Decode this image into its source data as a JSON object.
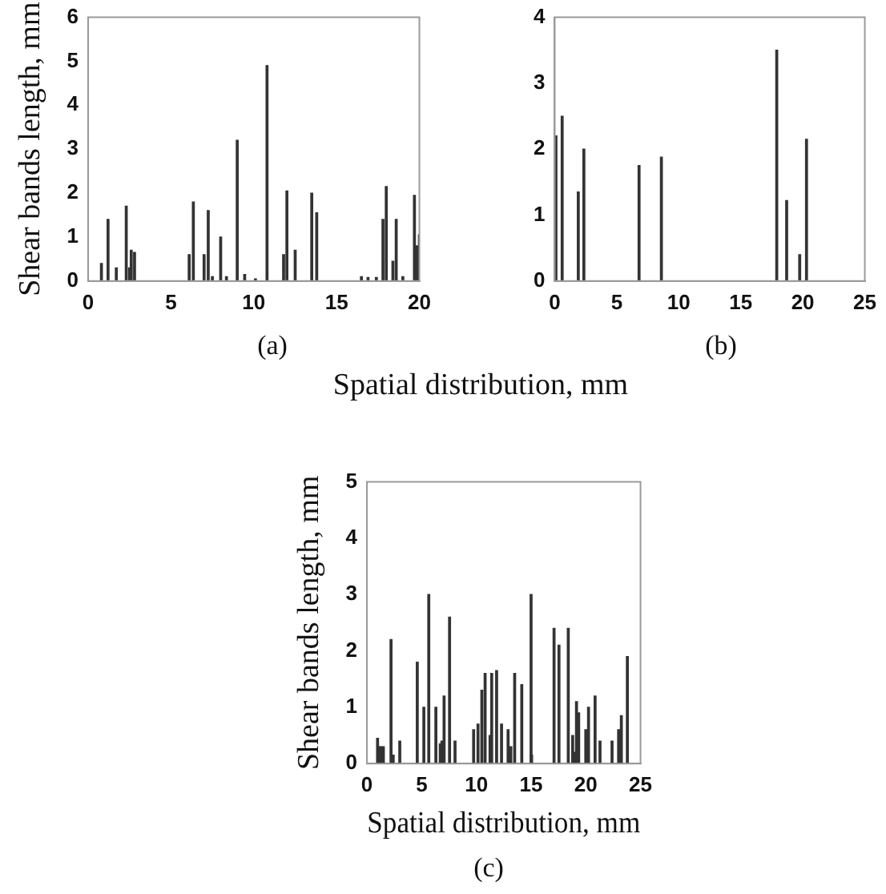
{
  "chart_data": [
    {
      "type": "bar",
      "title": "(a)",
      "xlabel": "Spatial distribution, mm",
      "ylabel": "Shear bands length, mm",
      "color": "#333333",
      "grid": false,
      "xlim": [
        0,
        20
      ],
      "xticks": [
        0,
        5,
        10,
        15,
        20
      ],
      "ylim": [
        0,
        6
      ],
      "yticks": [
        0,
        1,
        2,
        3,
        4,
        5,
        6
      ],
      "x": [
        0.8,
        1.2,
        1.7,
        2.3,
        2.5,
        2.6,
        2.8,
        6.1,
        6.35,
        7.0,
        7.25,
        7.5,
        8.0,
        8.35,
        9.0,
        9.45,
        10.1,
        10.8,
        11.8,
        12.0,
        12.5,
        13.5,
        13.8,
        16.5,
        16.9,
        17.4,
        17.8,
        18.0,
        18.4,
        18.6,
        19.0,
        19.7,
        19.85,
        20.0
      ],
      "values": [
        0.4,
        1.4,
        0.3,
        1.7,
        0.3,
        0.7,
        0.65,
        0.6,
        1.8,
        0.6,
        1.6,
        0.1,
        1.0,
        0.1,
        3.2,
        0.15,
        0.05,
        4.9,
        0.6,
        2.05,
        0.7,
        2.0,
        1.55,
        0.1,
        0.08,
        0.08,
        1.4,
        2.15,
        0.45,
        1.4,
        0.1,
        1.95,
        0.8,
        1.05
      ]
    },
    {
      "type": "bar",
      "title": "(b)",
      "color": "#333333",
      "grid": false,
      "xlim": [
        0,
        25
      ],
      "xticks": [
        0,
        5,
        10,
        15,
        20,
        25
      ],
      "ylim": [
        0,
        4
      ],
      "yticks": [
        0,
        1,
        2,
        3,
        4
      ],
      "x": [
        0.1,
        0.6,
        1.9,
        2.35,
        6.8,
        8.6,
        17.9,
        18.7,
        19.75,
        20.3
      ],
      "values": [
        2.2,
        2.5,
        1.35,
        2.0,
        1.75,
        1.88,
        3.5,
        1.22,
        0.4,
        2.15
      ]
    },
    {
      "type": "bar",
      "title": "(c)",
      "xlabel": "Spatial distribution, mm",
      "ylabel": "Shear bands length, mm",
      "color": "#333333",
      "grid": false,
      "xlim": [
        0,
        25
      ],
      "xticks": [
        0,
        5,
        10,
        15,
        20,
        25
      ],
      "ylim": [
        0,
        5
      ],
      "yticks": [
        0,
        1,
        2,
        3,
        4,
        5
      ],
      "x": [
        0.97,
        1.1,
        1.3,
        1.5,
        2.2,
        2.4,
        3.0,
        4.6,
        5.2,
        5.65,
        6.3,
        6.7,
        6.85,
        7.05,
        7.55,
        8.05,
        9.75,
        10.15,
        10.5,
        10.8,
        11.25,
        11.4,
        11.85,
        12.3,
        12.9,
        13.15,
        13.5,
        14.15,
        15.0,
        15.05,
        17.1,
        17.55,
        18.4,
        18.8,
        19.0,
        19.15,
        19.35,
        20.0,
        20.25,
        20.85,
        21.3,
        22.4,
        23.0,
        23.25,
        23.8
      ],
      "values": [
        0.45,
        0.3,
        0.3,
        0.3,
        2.2,
        0.15,
        0.4,
        1.8,
        1.0,
        3.0,
        1.0,
        0.35,
        0.4,
        1.2,
        2.6,
        0.4,
        0.6,
        0.7,
        1.3,
        1.6,
        0.5,
        1.6,
        1.65,
        0.7,
        0.6,
        0.3,
        1.6,
        1.4,
        3.0,
        0.15,
        2.4,
        2.1,
        2.4,
        0.5,
        0.2,
        1.1,
        0.9,
        0.6,
        1.0,
        1.2,
        0.4,
        0.4,
        0.6,
        0.85,
        1.9
      ]
    }
  ]
}
